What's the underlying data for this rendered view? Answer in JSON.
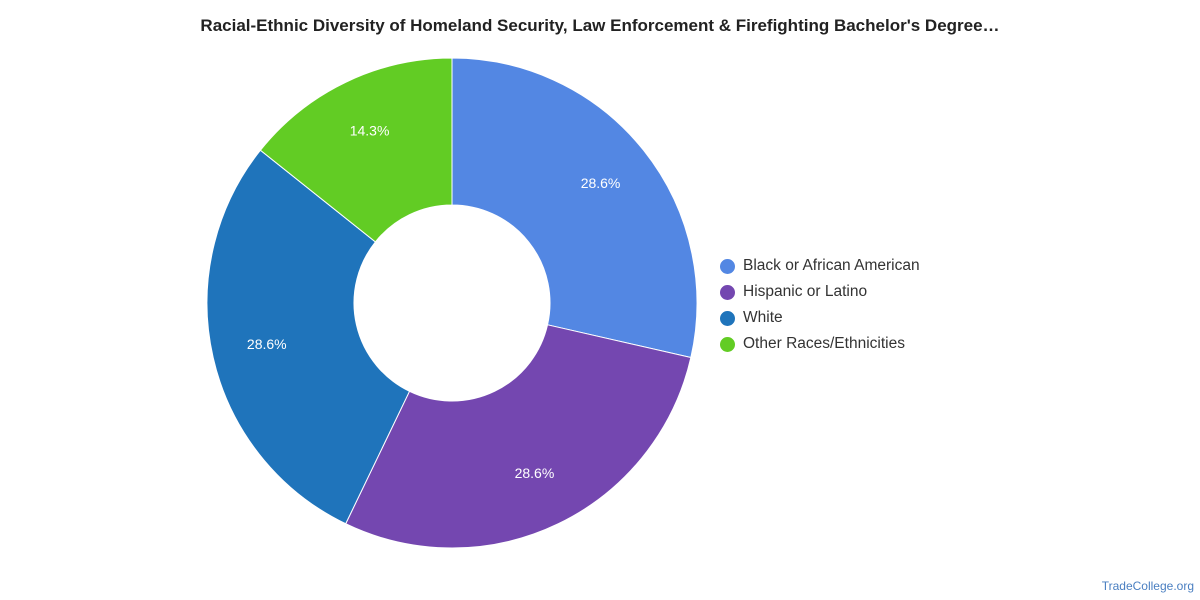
{
  "chart_data": {
    "type": "pie",
    "donut": true,
    "title": "Racial-Ethnic Diversity of Homeland Security, Law Enforcement & Firefighting Bachelor's Degree…",
    "categories": [
      "Black or African American",
      "Hispanic or Latino",
      "White",
      "Other Races/Ethnicities"
    ],
    "values": [
      28.6,
      28.6,
      28.6,
      14.3
    ],
    "labels": [
      "28.6%",
      "28.6%",
      "28.6%",
      "14.3%"
    ],
    "colors": [
      "#5387e3",
      "#7447b0",
      "#1f74bb",
      "#62cc24"
    ],
    "legend_position": "right"
  },
  "credit": "TradeCollege.org"
}
